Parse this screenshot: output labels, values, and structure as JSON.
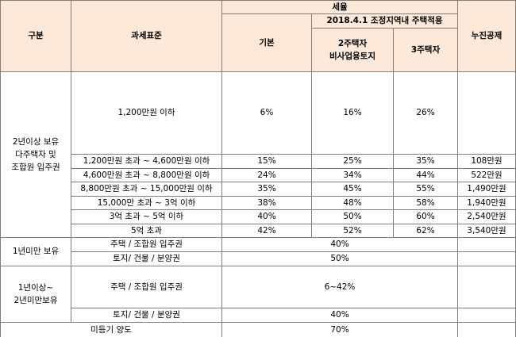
{
  "header": {
    "category": "구분",
    "tax_base": "과세표준",
    "tax_rate": "세율",
    "adjusted_area": "2018.4.1 조정지역내 주택적용",
    "basic": "기본",
    "two_homes": "2주택자\n비사업용토지",
    "three_homes": "3주택자",
    "progressive_deduction": "누진공제"
  },
  "group_two_plus": {
    "label": "2년이상 보유\n다주택자 및\n조합원 입주권",
    "rows": [
      {
        "base": "1,200만원 이하",
        "basic": "6%",
        "two": "16%",
        "three": "26%",
        "deduction": ""
      },
      {
        "base": "1,200만원 초과 ~ 4,600만원 이하",
        "basic": "15%",
        "two": "25%",
        "three": "35%",
        "deduction": "108만원"
      },
      {
        "base": "4,600만원 초과 ~ 8,800만원 이하",
        "basic": "24%",
        "two": "34%",
        "three": "44%",
        "deduction": "522만원"
      },
      {
        "base": "8,800만원 초과 ~ 15,000만원 이하",
        "basic": "35%",
        "two": "45%",
        "three": "55%",
        "deduction": "1,490만원"
      },
      {
        "base": "15,000만 초과 ~ 3억 이하",
        "basic": "38%",
        "two": "48%",
        "three": "58%",
        "deduction": "1,940만원"
      },
      {
        "base": "3억 초과 ~ 5억 이하",
        "basic": "40%",
        "two": "50%",
        "three": "60%",
        "deduction": "2,540만원"
      },
      {
        "base": "5억 초과",
        "basic": "42%",
        "two": "52%",
        "three": "62%",
        "deduction": "3,540만원"
      }
    ]
  },
  "group_under_one": {
    "label": "1년미만 보유",
    "rows": [
      {
        "base": "주택 / 조합원 입주권",
        "rate": "40%"
      },
      {
        "base": "토지/ 건물 / 분양권",
        "rate": "50%"
      }
    ]
  },
  "group_one_to_two": {
    "label": "1년이상~\n2년미만보유",
    "rows": [
      {
        "base": "주택 / 조합원 입주권",
        "rate": "6~42%"
      },
      {
        "base": "토지/ 건물 / 분양권",
        "rate": "40%"
      }
    ]
  },
  "unregistered": {
    "label": "미등기 양도",
    "rate": "70%"
  }
}
